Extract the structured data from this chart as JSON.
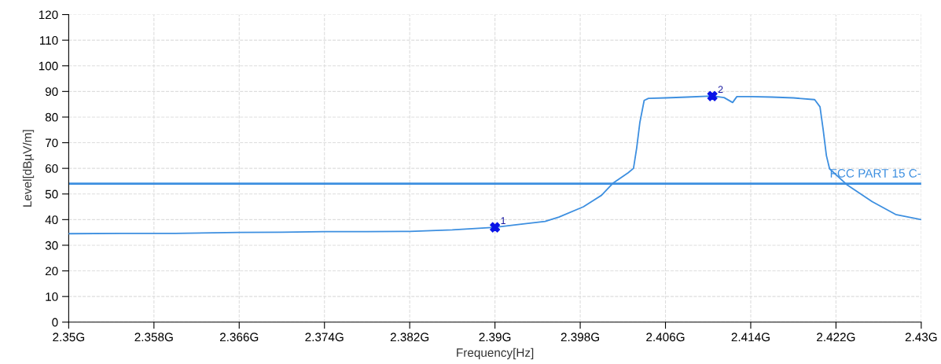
{
  "chart_data": {
    "type": "line",
    "xlabel": "Frequency[Hz]",
    "ylabel": "Level[dBµV/m]",
    "series": [
      {
        "color": "#3d8fe0",
        "marker": "none",
        "x": [
          2.35,
          2.355,
          2.36,
          2.366,
          2.37,
          2.374,
          2.378,
          2.382,
          2.386,
          2.39,
          2.392,
          2.3947,
          2.396,
          2.3983,
          2.4,
          2.4011,
          2.4025,
          2.403,
          2.4033,
          2.4036,
          2.404,
          2.4044,
          2.406,
          2.408,
          2.4104,
          2.4115,
          2.4123,
          2.4127,
          2.414,
          2.416,
          2.418,
          2.42,
          2.4205,
          2.4208,
          2.4211,
          2.4214,
          2.423,
          2.4254,
          2.4276,
          2.43
        ],
        "values": [
          34.5,
          34.6,
          34.6,
          35.0,
          35.1,
          35.3,
          35.3,
          35.4,
          36.0,
          37.0,
          38.0,
          39.3,
          41.0,
          45.0,
          49.5,
          54.3,
          58.3,
          60.0,
          68,
          78,
          86.5,
          87.3,
          87.5,
          87.8,
          88.2,
          87.6,
          85.7,
          88.0,
          88.0,
          87.8,
          87.5,
          86.8,
          84,
          75,
          65,
          59.8,
          53.7,
          47,
          42,
          40
        ]
      },
      {
        "type": "scatter",
        "color": "#0a14e6",
        "marker": "cross",
        "x": [
          2.39,
          2.4104
        ],
        "values": [
          37.0,
          88.2
        ]
      }
    ],
    "annotations": [
      {
        "text": "1",
        "x": 2.39,
        "y": 37.0
      },
      {
        "text": "2",
        "x": 2.4104,
        "y": 88.2
      }
    ],
    "ref_lines": [
      {
        "axis": "y",
        "value": 54,
        "label": "FCC PART 15 C-",
        "color": "#3d8fe0",
        "line_style": "solid"
      }
    ],
    "xlim": [
      2.35,
      2.43
    ],
    "xticks": [
      {
        "value": 2.35,
        "label": "2.35G"
      },
      {
        "value": 2.358,
        "label": "2.358G"
      },
      {
        "value": 2.366,
        "label": "2.366G"
      },
      {
        "value": 2.374,
        "label": "2.374G"
      },
      {
        "value": 2.382,
        "label": "2.382G"
      },
      {
        "value": 2.39,
        "label": "2.39G"
      },
      {
        "value": 2.398,
        "label": "2.398G"
      },
      {
        "value": 2.406,
        "label": "2.406G"
      },
      {
        "value": 2.414,
        "label": "2.414G"
      },
      {
        "value": 2.422,
        "label": "2.422G"
      },
      {
        "value": 2.43,
        "label": "2.43G"
      }
    ],
    "ylim": [
      0,
      120
    ],
    "yticks": [
      0,
      10,
      20,
      30,
      40,
      50,
      60,
      70,
      80,
      90,
      100,
      110,
      120
    ],
    "grid": true
  }
}
